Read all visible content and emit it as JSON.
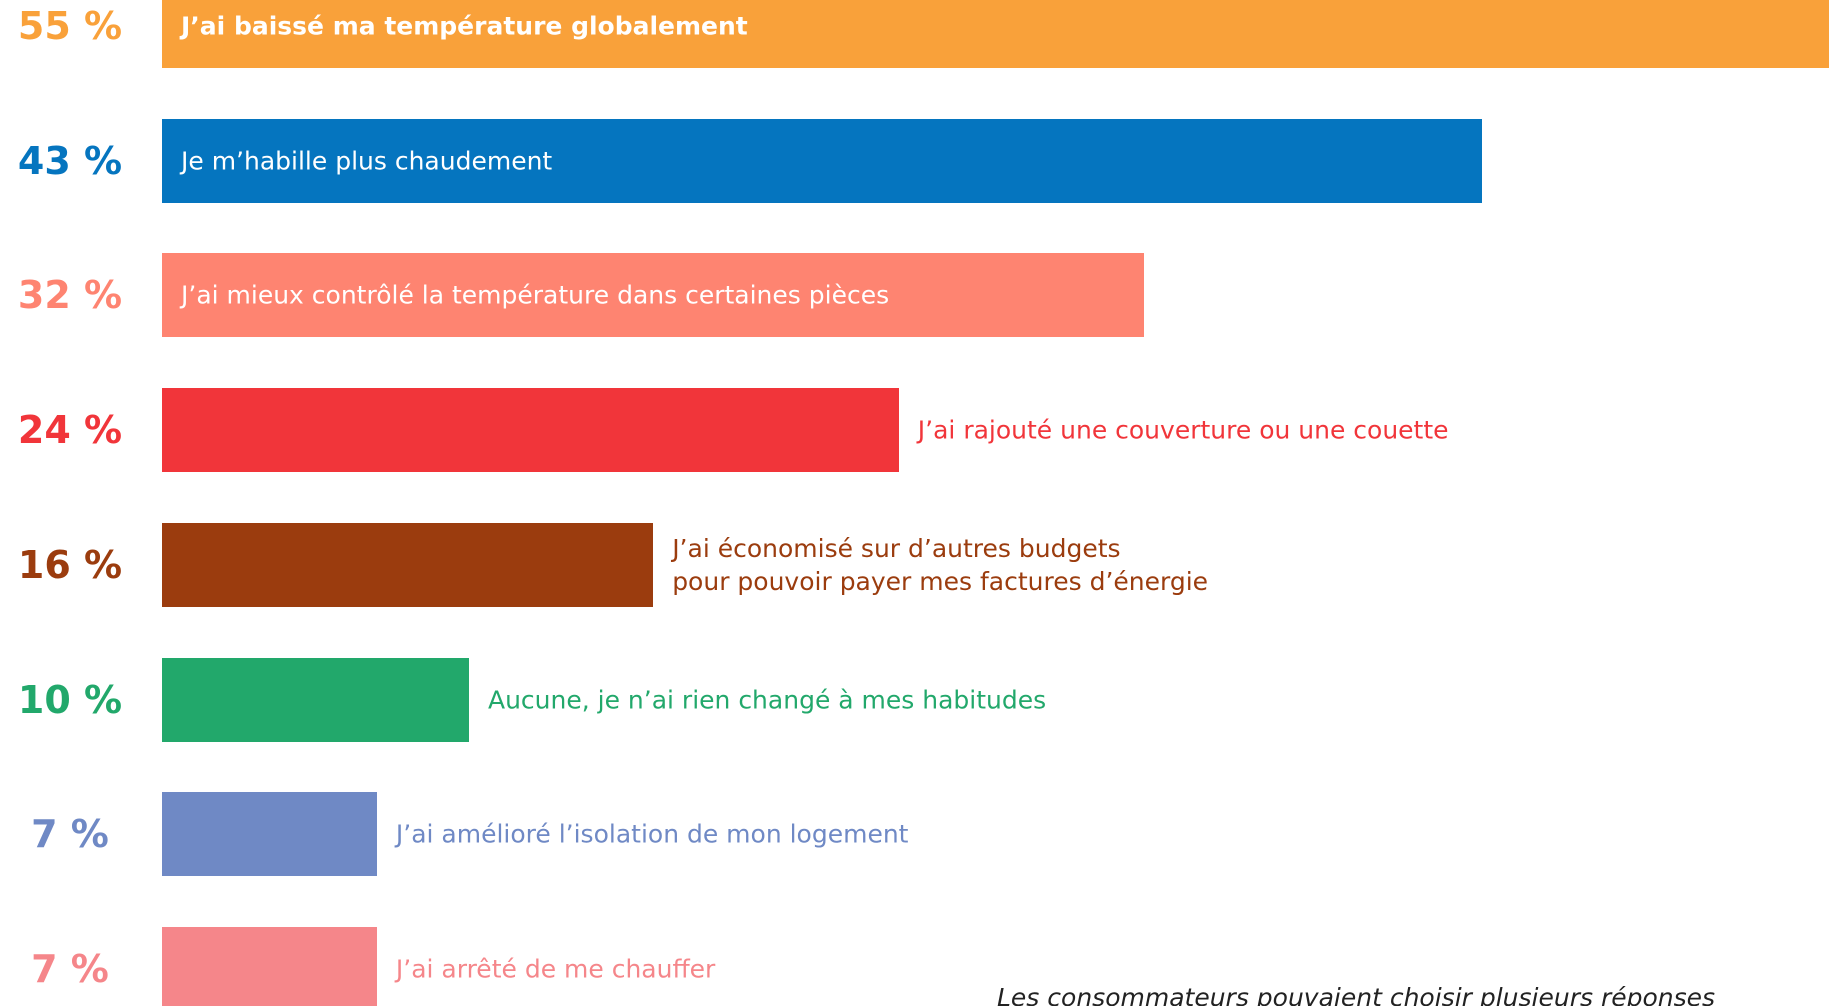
{
  "chart_data": {
    "type": "barh",
    "categories": [
      "J’ai baissé ma température globalement",
      "Je m’habille plus chaudement",
      "J’ai mieux contrôlé la température dans certaines pièces",
      "J’ai rajouté une couverture ou une couette",
      "J’ai économisé sur d’autres budgets\npour pouvoir payer mes factures d’énergie",
      "Aucune, je n’ai rien changé à mes habitudes",
      "J’ai amélioré l’isolation de mon logement",
      "J’ai arrêté de me chauffer"
    ],
    "values": [
      55,
      43,
      32,
      24,
      16,
      10,
      7,
      7
    ],
    "value_labels": [
      "55 %",
      "43 %",
      "32 %",
      "24 %",
      "16 %",
      "10 %",
      "7 %",
      "7 %"
    ],
    "colors": [
      "#f9a13a",
      "#0575bf",
      "#fe8471",
      "#f1353a",
      "#9b3c0e",
      "#22a86b",
      "#6f89c5",
      "#f5868a"
    ],
    "xlim": [
      0,
      54.3
    ],
    "note": "Les consommateurs pouvaient choisir plusieurs réponses"
  }
}
